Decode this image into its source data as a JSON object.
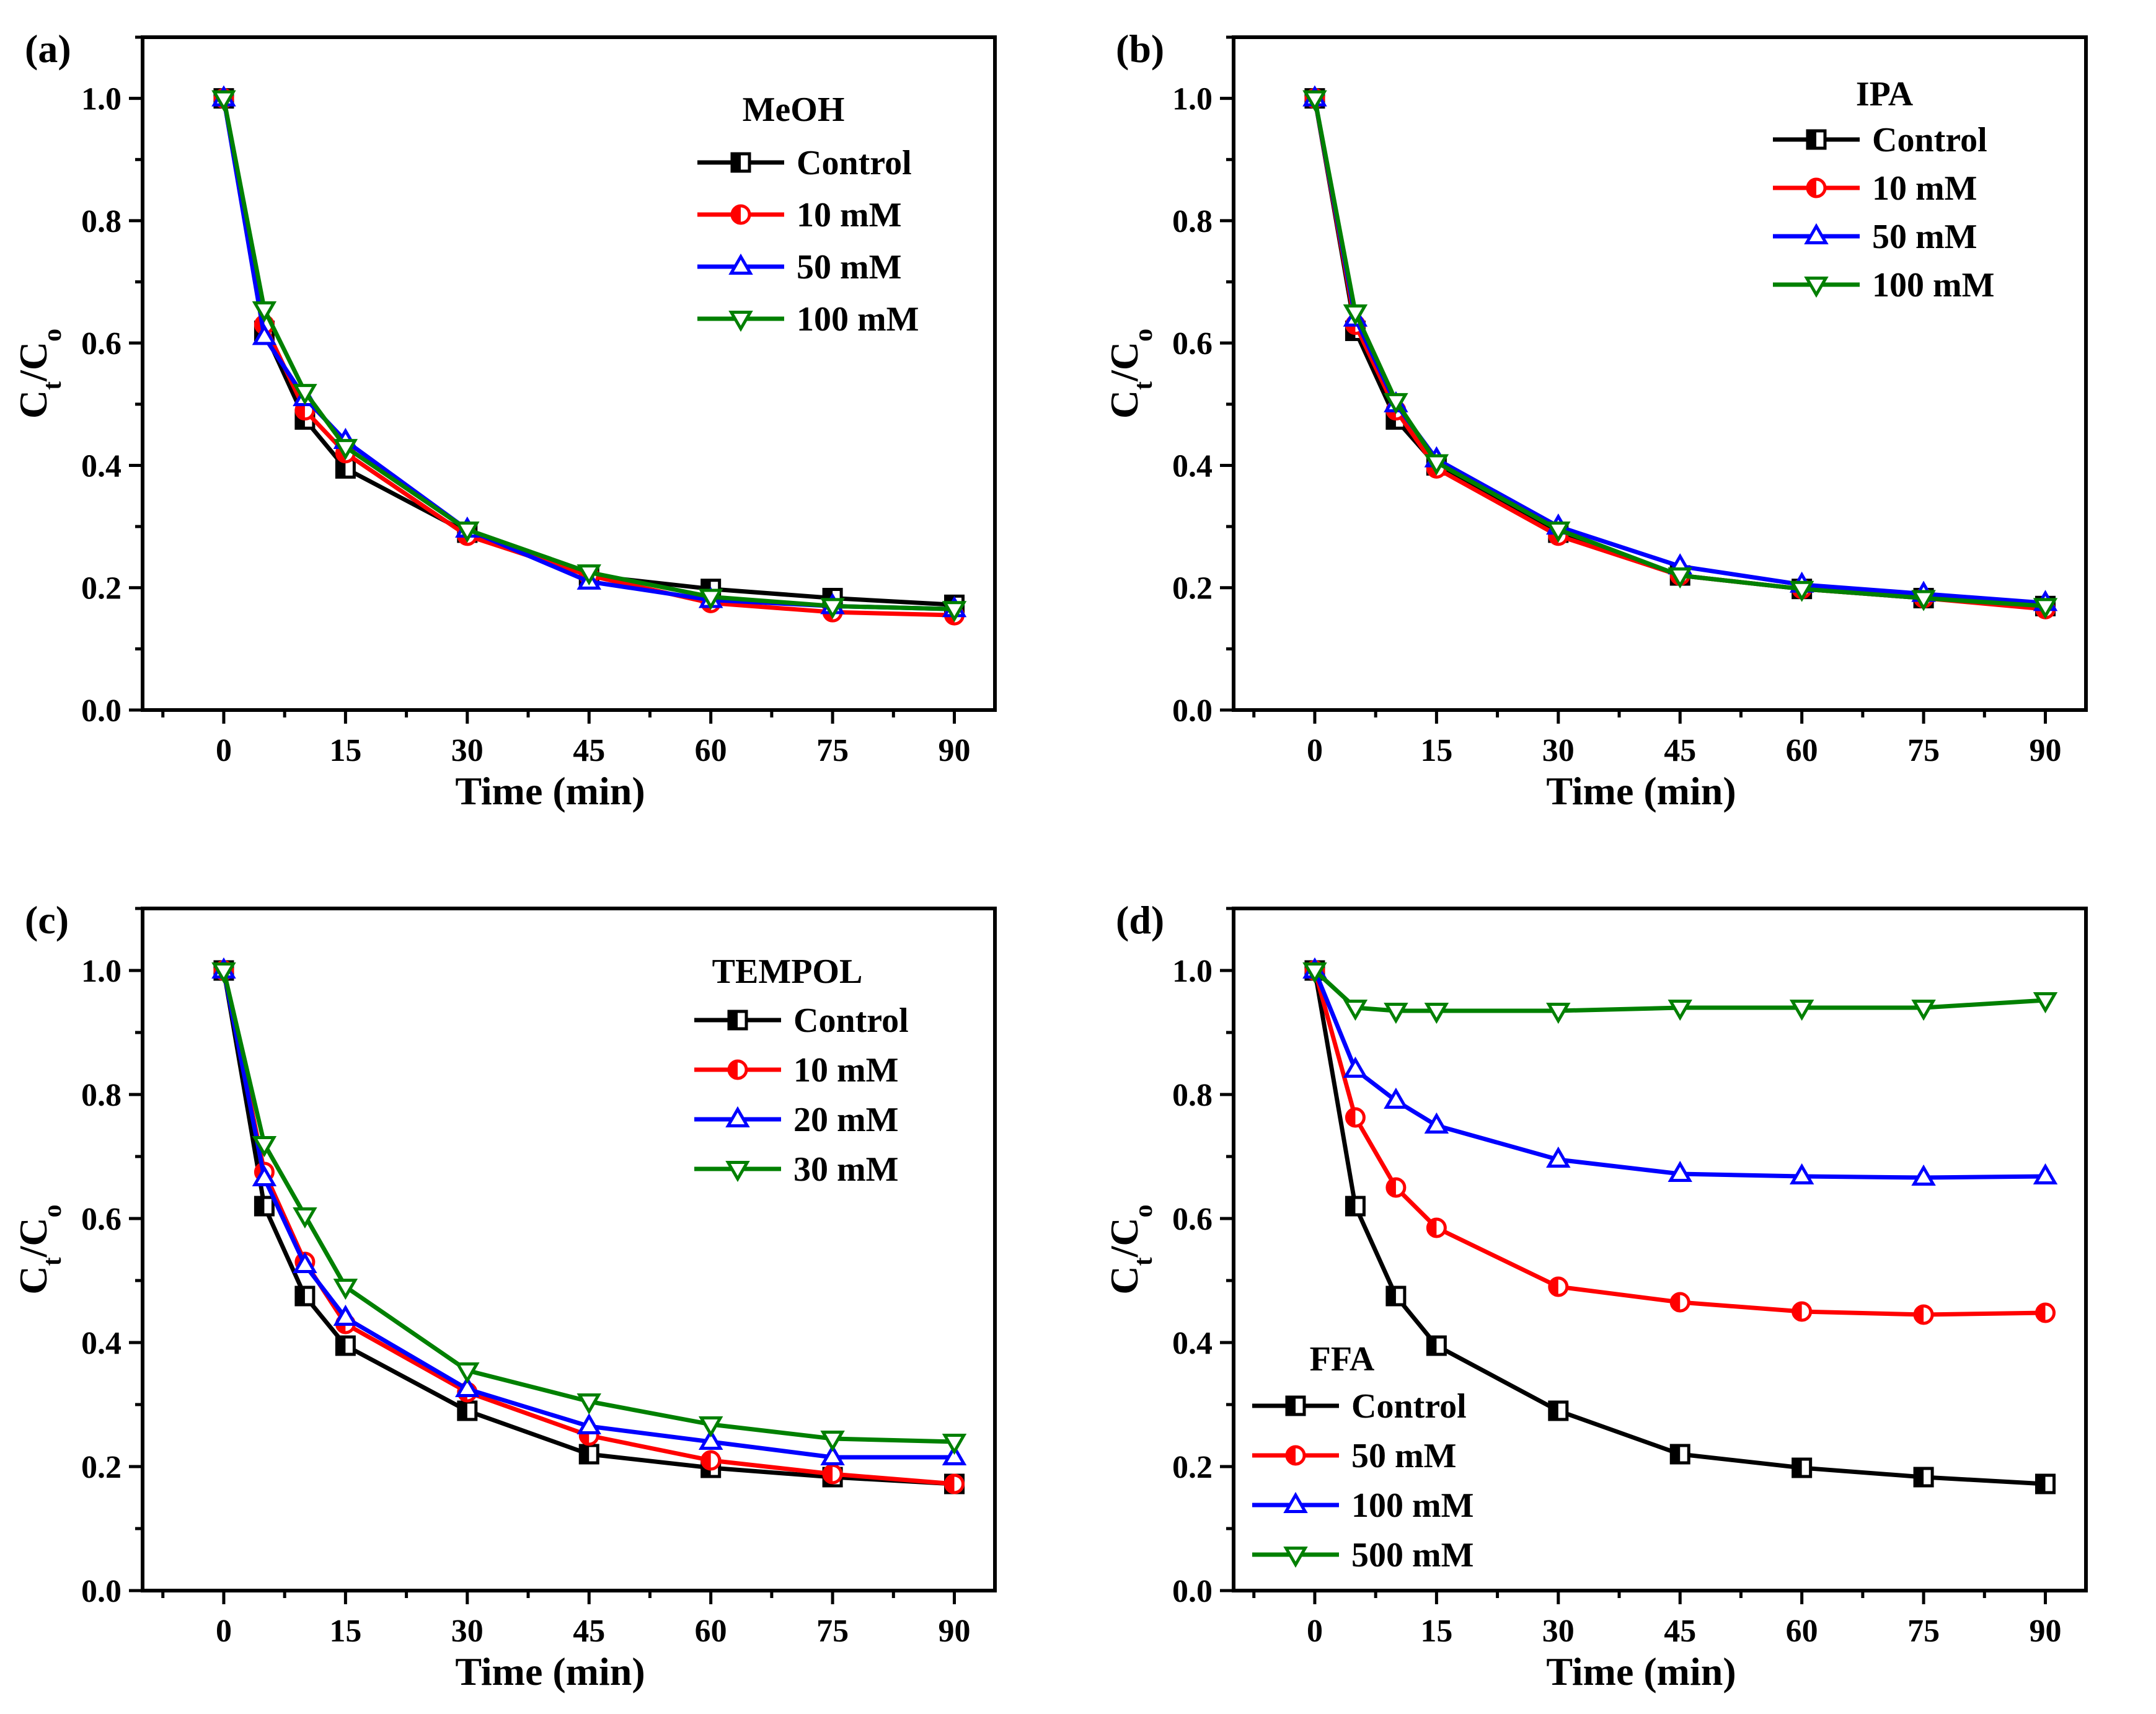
{
  "chart_data": [
    {
      "type": "line",
      "panel_label": "(a)",
      "xlabel": "Time (min)",
      "ylabel": "Ct/Co",
      "ylabel_main": "C",
      "ylabel_sub1": "t",
      "ylabel_mid": "/C",
      "ylabel_sub2": "o",
      "xlim": [
        -10,
        95
      ],
      "ylim": [
        0,
        1.1
      ],
      "xticks": [
        0,
        15,
        30,
        45,
        60,
        75,
        90
      ],
      "yticks": [
        0.0,
        0.2,
        0.4,
        0.6,
        0.8,
        1.0
      ],
      "ytick_labels": [
        "0.0",
        "0.2",
        "0.4",
        "0.6",
        "0.8",
        "1.0"
      ],
      "legend_title": "MeOH",
      "legend_position": "top-right",
      "x": [
        0,
        5,
        10,
        15,
        30,
        45,
        60,
        75,
        90
      ],
      "series": [
        {
          "name": "Control",
          "color": "#000000",
          "marker": "half-square",
          "values": [
            1.0,
            0.62,
            0.475,
            0.395,
            0.29,
            0.22,
            0.198,
            0.183,
            0.172
          ]
        },
        {
          "name": "10 mM",
          "color": "#ff0000",
          "marker": "half-circle",
          "values": [
            1.0,
            0.63,
            0.49,
            0.42,
            0.285,
            0.22,
            0.175,
            0.16,
            0.155
          ]
        },
        {
          "name": "50 mM",
          "color": "#0000ff",
          "marker": "triangle-up",
          "values": [
            1.0,
            0.61,
            0.51,
            0.44,
            0.295,
            0.21,
            0.18,
            0.17,
            0.165
          ]
        },
        {
          "name": "100 mM",
          "color": "#008000",
          "marker": "triangle-down",
          "values": [
            1.0,
            0.655,
            0.52,
            0.43,
            0.295,
            0.225,
            0.185,
            0.17,
            0.165
          ]
        }
      ]
    },
    {
      "type": "line",
      "panel_label": "(b)",
      "xlabel": "Time (min)",
      "ylabel": "Ct/Co",
      "ylabel_main": "C",
      "ylabel_sub1": "t",
      "ylabel_mid": "/C",
      "ylabel_sub2": "o",
      "xlim": [
        -10,
        95
      ],
      "ylim": [
        0,
        1.1
      ],
      "xticks": [
        0,
        15,
        30,
        45,
        60,
        75,
        90
      ],
      "yticks": [
        0.0,
        0.2,
        0.4,
        0.6,
        0.8,
        1.0
      ],
      "ytick_labels": [
        "0.0",
        "0.2",
        "0.4",
        "0.6",
        "0.8",
        "1.0"
      ],
      "legend_title": "IPA",
      "legend_position": "top-right",
      "x": [
        0,
        5,
        10,
        15,
        30,
        45,
        60,
        75,
        90
      ],
      "series": [
        {
          "name": "Control",
          "color": "#000000",
          "marker": "half-square",
          "values": [
            1.0,
            0.62,
            0.475,
            0.4,
            0.29,
            0.22,
            0.198,
            0.183,
            0.17
          ]
        },
        {
          "name": "10 mM",
          "color": "#ff0000",
          "marker": "half-circle",
          "values": [
            1.0,
            0.63,
            0.49,
            0.395,
            0.285,
            0.22,
            0.198,
            0.183,
            0.165
          ]
        },
        {
          "name": "50 mM",
          "color": "#0000ff",
          "marker": "triangle-up",
          "values": [
            1.0,
            0.64,
            0.5,
            0.41,
            0.3,
            0.235,
            0.205,
            0.19,
            0.175
          ]
        },
        {
          "name": "100 mM",
          "color": "#008000",
          "marker": "triangle-down",
          "values": [
            1.0,
            0.65,
            0.505,
            0.405,
            0.295,
            0.22,
            0.198,
            0.183,
            0.17
          ]
        }
      ]
    },
    {
      "type": "line",
      "panel_label": "(c)",
      "xlabel": "Time (min)",
      "ylabel": "Ct/Co",
      "ylabel_main": "C",
      "ylabel_sub1": "t",
      "ylabel_mid": "/C",
      "ylabel_sub2": "o",
      "xlim": [
        -10,
        95
      ],
      "ylim": [
        0,
        1.1
      ],
      "xticks": [
        0,
        15,
        30,
        45,
        60,
        75,
        90
      ],
      "yticks": [
        0.0,
        0.2,
        0.4,
        0.6,
        0.8,
        1.0
      ],
      "ytick_labels": [
        "0.0",
        "0.2",
        "0.4",
        "0.6",
        "0.8",
        "1.0"
      ],
      "legend_title": "TEMPOL",
      "legend_position": "top-right",
      "x": [
        0,
        5,
        10,
        15,
        30,
        45,
        60,
        75,
        90
      ],
      "series": [
        {
          "name": "Control",
          "color": "#000000",
          "marker": "half-square",
          "values": [
            1.0,
            0.62,
            0.475,
            0.395,
            0.29,
            0.22,
            0.198,
            0.183,
            0.172
          ]
        },
        {
          "name": "10 mM",
          "color": "#ff0000",
          "marker": "half-circle",
          "values": [
            1.0,
            0.675,
            0.53,
            0.43,
            0.32,
            0.25,
            0.21,
            0.188,
            0.172
          ]
        },
        {
          "name": "20 mM",
          "color": "#0000ff",
          "marker": "triangle-up",
          "values": [
            1.0,
            0.665,
            0.525,
            0.44,
            0.325,
            0.265,
            0.24,
            0.215,
            0.215
          ]
        },
        {
          "name": "30 mM",
          "color": "#008000",
          "marker": "triangle-down",
          "values": [
            1.0,
            0.72,
            0.605,
            0.49,
            0.355,
            0.305,
            0.268,
            0.245,
            0.24
          ]
        }
      ]
    },
    {
      "type": "line",
      "panel_label": "(d)",
      "xlabel": "Time (min)",
      "ylabel": "Ct/Co",
      "ylabel_main": "C",
      "ylabel_sub1": "t",
      "ylabel_mid": "/C",
      "ylabel_sub2": "o",
      "xlim": [
        -10,
        95
      ],
      "ylim": [
        0,
        1.1
      ],
      "xticks": [
        0,
        15,
        30,
        45,
        60,
        75,
        90
      ],
      "yticks": [
        0.0,
        0.2,
        0.4,
        0.6,
        0.8,
        1.0
      ],
      "ytick_labels": [
        "0.0",
        "0.2",
        "0.4",
        "0.6",
        "0.8",
        "1.0"
      ],
      "legend_title": "FFA",
      "legend_position": "bottom-left",
      "x": [
        0,
        5,
        10,
        15,
        30,
        45,
        60,
        75,
        90
      ],
      "series": [
        {
          "name": "Control",
          "color": "#000000",
          "marker": "half-square",
          "values": [
            1.0,
            0.62,
            0.475,
            0.395,
            0.29,
            0.22,
            0.198,
            0.183,
            0.172
          ]
        },
        {
          "name": "50 mM",
          "color": "#ff0000",
          "marker": "half-circle",
          "values": [
            1.0,
            0.763,
            0.65,
            0.585,
            0.49,
            0.465,
            0.45,
            0.445,
            0.448
          ]
        },
        {
          "name": "100 mM",
          "color": "#0000ff",
          "marker": "triangle-up",
          "values": [
            1.0,
            0.84,
            0.79,
            0.75,
            0.695,
            0.672,
            0.668,
            0.666,
            0.668
          ]
        },
        {
          "name": "500 mM",
          "color": "#008000",
          "marker": "triangle-down",
          "values": [
            1.0,
            0.94,
            0.935,
            0.935,
            0.935,
            0.94,
            0.94,
            0.94,
            0.952
          ]
        }
      ]
    }
  ]
}
